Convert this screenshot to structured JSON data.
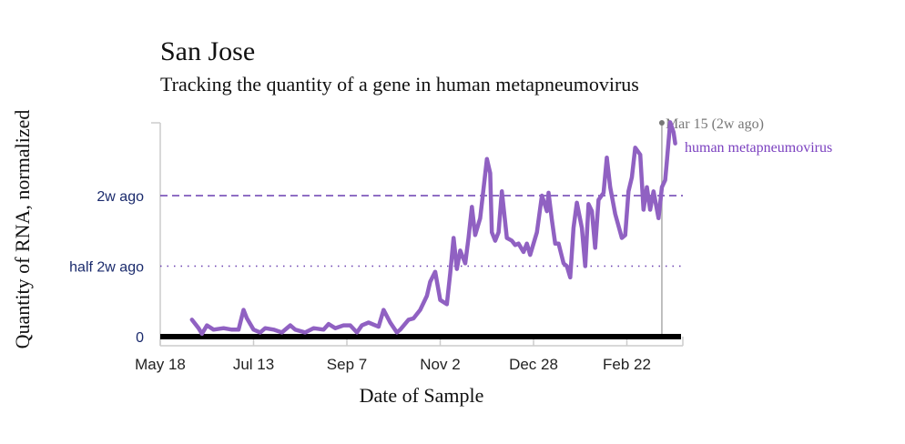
{
  "chart_data": {
    "type": "line",
    "title": "San Jose",
    "subtitle": "Tracking the quantity of a gene in human metapneumovirus",
    "xlabel": "Date of Sample",
    "ylabel": "Quantity of RNA, normalized",
    "x_ticks": [
      "May 18",
      "Jul 13",
      "Sep 7",
      "Nov 2",
      "Dec 28",
      "Feb 22"
    ],
    "y_ticks": [
      {
        "label": "0",
        "value": 0
      },
      {
        "label": "half 2w ago",
        "value": 0.5,
        "style": "dotted"
      },
      {
        "label": "2w ago",
        "value": 1,
        "style": "dashed"
      }
    ],
    "ylim": [
      0,
      1.52
    ],
    "xlim": [
      "May 18",
      "Mar 25"
    ],
    "grid": false,
    "marker": {
      "date": "Mar 15",
      "label": "Mar 15 (2w ago)"
    },
    "series": [
      {
        "name": "human metapneumovirus",
        "color": "#9061c2",
        "points": [
          [
            "Jun 6",
            0.12
          ],
          [
            "Jun 10",
            0.06
          ],
          [
            "Jun 12",
            0.02
          ],
          [
            "Jun 15",
            0.08
          ],
          [
            "Jun 19",
            0.05
          ],
          [
            "Jun 25",
            0.06
          ],
          [
            "Jun 30",
            0.05
          ],
          [
            "Jul 4",
            0.05
          ],
          [
            "Jul 7",
            0.19
          ],
          [
            "Jul 9",
            0.13
          ],
          [
            "Jul 13",
            0.05
          ],
          [
            "Jul 17",
            0.03
          ],
          [
            "Jul 20",
            0.06
          ],
          [
            "Jul 25",
            0.05
          ],
          [
            "Jul 30",
            0.03
          ],
          [
            "Aug 4",
            0.08
          ],
          [
            "Aug 7",
            0.05
          ],
          [
            "Aug 13",
            0.03
          ],
          [
            "Aug 18",
            0.06
          ],
          [
            "Aug 24",
            0.05
          ],
          [
            "Aug 27",
            0.09
          ],
          [
            "Aug 31",
            0.06
          ],
          [
            "Sep 5",
            0.08
          ],
          [
            "Sep 9",
            0.08
          ],
          [
            "Sep 13",
            0.03
          ],
          [
            "Sep 16",
            0.08
          ],
          [
            "Sep 20",
            0.1
          ],
          [
            "Sep 26",
            0.07
          ],
          [
            "Sep 29",
            0.19
          ],
          [
            "Oct 3",
            0.1
          ],
          [
            "Oct 7",
            0.03
          ],
          [
            "Oct 9",
            0.05
          ],
          [
            "Oct 14",
            0.12
          ],
          [
            "Oct 17",
            0.13
          ],
          [
            "Oct 21",
            0.19
          ],
          [
            "Oct 25",
            0.29
          ],
          [
            "Oct 27",
            0.39
          ],
          [
            "Oct 30",
            0.46
          ],
          [
            "Nov 2",
            0.26
          ],
          [
            "Nov 6",
            0.23
          ],
          [
            "Nov 8",
            0.45
          ],
          [
            "Nov 10",
            0.7
          ],
          [
            "Nov 12",
            0.48
          ],
          [
            "Nov 14",
            0.61
          ],
          [
            "Nov 17",
            0.52
          ],
          [
            "Nov 19",
            0.7
          ],
          [
            "Nov 21",
            0.92
          ],
          [
            "Nov 23",
            0.72
          ],
          [
            "Nov 26",
            0.84
          ],
          [
            "Nov 30",
            1.26
          ],
          [
            "Dec 2",
            1.16
          ],
          [
            "Dec 3",
            0.74
          ],
          [
            "Dec 5",
            0.68
          ],
          [
            "Dec 7",
            0.74
          ],
          [
            "Dec 9",
            1.03
          ],
          [
            "Dec 12",
            0.7
          ],
          [
            "Dec 15",
            0.68
          ],
          [
            "Dec 17",
            0.65
          ],
          [
            "Dec 19",
            0.66
          ],
          [
            "Dec 22",
            0.6
          ],
          [
            "Dec 24",
            0.66
          ],
          [
            "Dec 26",
            0.58
          ],
          [
            "Dec 28",
            0.66
          ],
          [
            "Dec 30",
            0.74
          ],
          [
            "Jan 2",
            1.0
          ],
          [
            "Jan 5",
            0.89
          ],
          [
            "Jan 6",
            1.02
          ],
          [
            "Jan 8",
            0.83
          ],
          [
            "Jan 10",
            0.66
          ],
          [
            "Jan 12",
            0.66
          ],
          [
            "Jan 15",
            0.52
          ],
          [
            "Jan 17",
            0.5
          ],
          [
            "Jan 19",
            0.42
          ],
          [
            "Jan 21",
            0.77
          ],
          [
            "Jan 23",
            0.95
          ],
          [
            "Jan 26",
            0.77
          ],
          [
            "Jan 28",
            0.5
          ],
          [
            "Jan 30",
            0.94
          ],
          [
            "Feb 1",
            0.89
          ],
          [
            "Feb 3",
            0.63
          ],
          [
            "Feb 5",
            0.97
          ],
          [
            "Feb 8",
            1.02
          ],
          [
            "Feb 10",
            1.27
          ],
          [
            "Feb 12",
            1.06
          ],
          [
            "Feb 15",
            0.87
          ],
          [
            "Feb 19",
            0.7
          ],
          [
            "Feb 21",
            0.72
          ],
          [
            "Feb 23",
            1.03
          ],
          [
            "Feb 25",
            1.13
          ],
          [
            "Feb 27",
            1.34
          ],
          [
            "Mar 2",
            1.29
          ],
          [
            "Mar 4",
            0.9
          ],
          [
            "Mar 6",
            1.06
          ],
          [
            "Mar 8",
            0.9
          ],
          [
            "Mar 10",
            1.03
          ],
          [
            "Mar 13",
            0.84
          ],
          [
            "Mar 15",
            1.06
          ],
          [
            "Mar 17",
            1.11
          ],
          [
            "Mar 18",
            1.24
          ],
          [
            "Mar 20",
            1.52
          ],
          [
            "Mar 22",
            1.45
          ],
          [
            "Mar 23",
            1.37
          ]
        ]
      }
    ],
    "colors": {
      "threshold": "#6a3fb0",
      "tick_label": "#1a2a6c",
      "marker": "#999999",
      "marker_text": "#777777"
    }
  }
}
